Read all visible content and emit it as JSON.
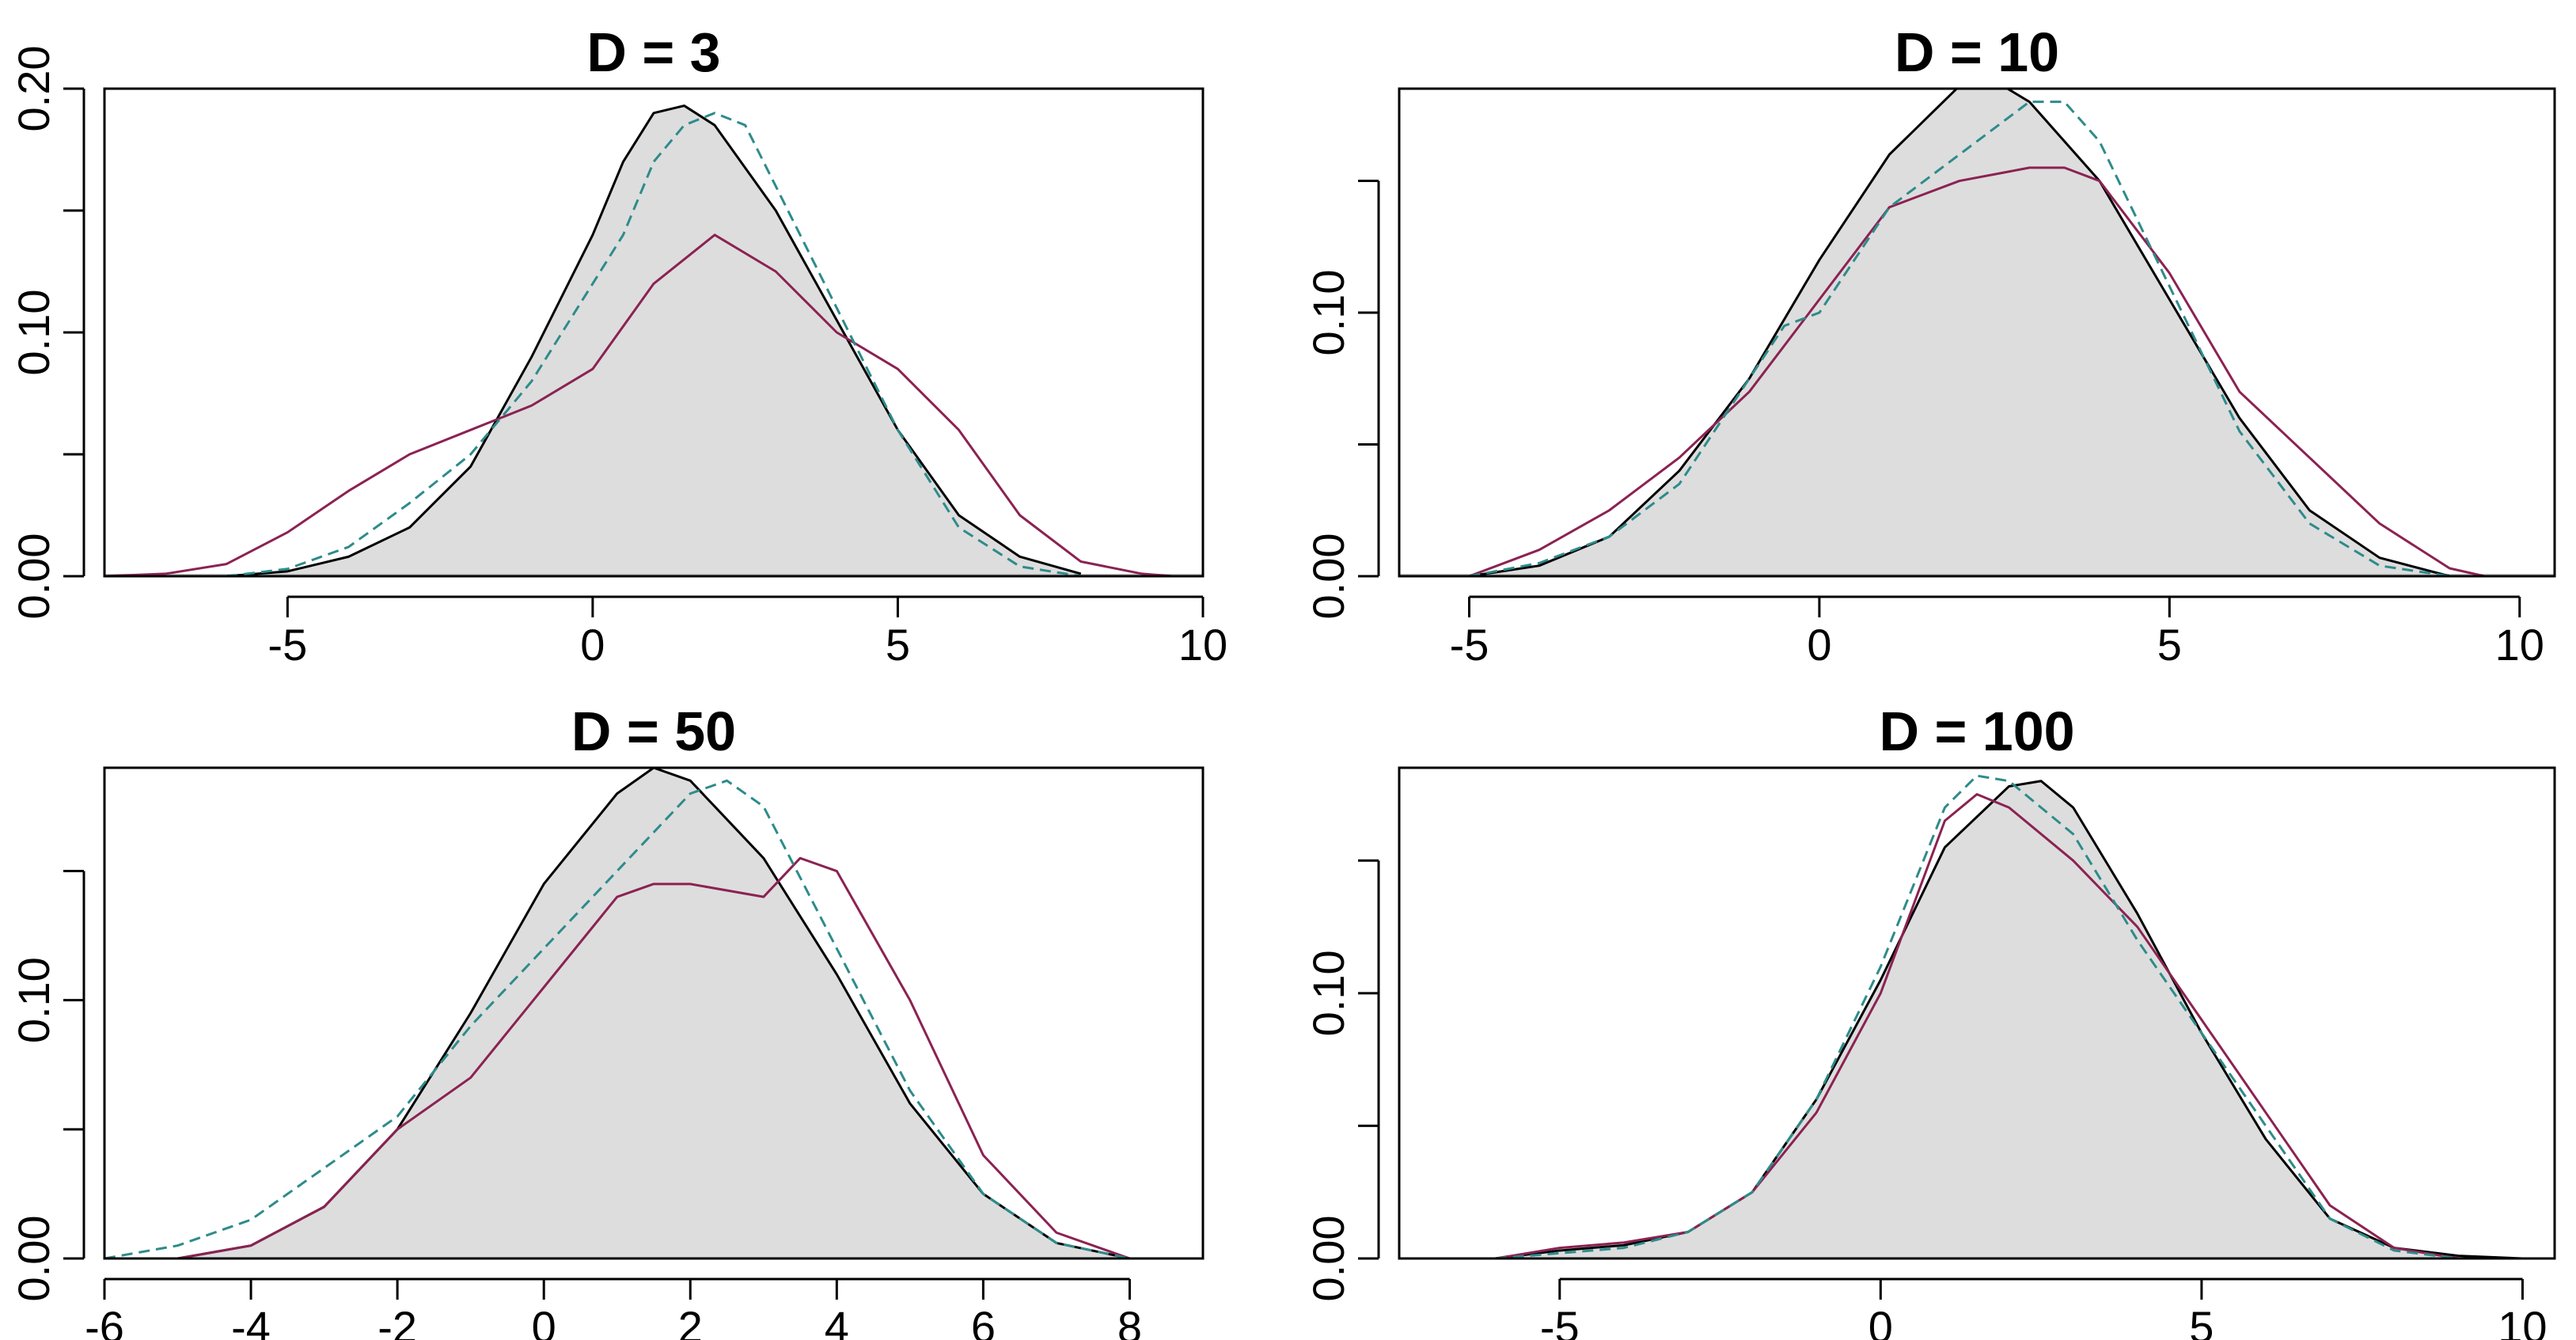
{
  "chart_data": [
    {
      "type": "line",
      "title": "D = 3",
      "xlim": [
        -8,
        10
      ],
      "ylim": [
        0,
        0.2
      ],
      "xticks": [
        -5,
        0,
        5,
        10
      ],
      "yticks": [
        0.0,
        0.05,
        0.1,
        0.15,
        0.2
      ],
      "ytick_labels": [
        "0.00",
        "",
        "0.10",
        "",
        "0.20"
      ],
      "baseline": 0,
      "series": [
        {
          "style": "filled-solid",
          "color": "#000000",
          "fill": "#dddddd",
          "x": [
            -6.0,
            -5.0,
            -4.0,
            -3.0,
            -2.0,
            -1.0,
            0.0,
            0.5,
            1.0,
            1.5,
            2.0,
            3.0,
            4.0,
            5.0,
            6.0,
            7.0,
            8.0
          ],
          "y": [
            0.0,
            0.002,
            0.008,
            0.02,
            0.045,
            0.09,
            0.14,
            0.17,
            0.19,
            0.193,
            0.185,
            0.15,
            0.105,
            0.06,
            0.025,
            0.008,
            0.001
          ]
        },
        {
          "style": "solid",
          "color": "#8b2252",
          "x": [
            -8.0,
            -7.0,
            -6.0,
            -5.0,
            -4.0,
            -3.0,
            -2.0,
            -1.0,
            0.0,
            1.0,
            2.0,
            3.0,
            4.0,
            5.0,
            6.0,
            7.0,
            8.0,
            9.0,
            9.5
          ],
          "y": [
            0.0,
            0.001,
            0.005,
            0.018,
            0.035,
            0.05,
            0.06,
            0.07,
            0.085,
            0.12,
            0.14,
            0.125,
            0.1,
            0.085,
            0.06,
            0.025,
            0.006,
            0.001,
            0.0
          ]
        },
        {
          "style": "dashed",
          "color": "#2e8b8b",
          "x": [
            -6.0,
            -5.0,
            -4.0,
            -3.0,
            -2.0,
            -1.0,
            0.0,
            0.5,
            1.0,
            1.5,
            2.0,
            2.5,
            3.0,
            4.0,
            5.0,
            6.0,
            7.0,
            8.0
          ],
          "y": [
            0.0,
            0.003,
            0.012,
            0.03,
            0.05,
            0.08,
            0.12,
            0.14,
            0.17,
            0.185,
            0.19,
            0.185,
            0.16,
            0.11,
            0.06,
            0.02,
            0.004,
            0.0
          ]
        }
      ]
    },
    {
      "type": "line",
      "title": "D = 10",
      "xlim": [
        -6,
        10.5
      ],
      "ylim": [
        0,
        0.185
      ],
      "xticks": [
        -5,
        0,
        5,
        10
      ],
      "yticks": [
        0.0,
        0.05,
        0.1,
        0.15
      ],
      "ytick_labels": [
        "0.00",
        "",
        "0.10",
        ""
      ],
      "baseline": 0,
      "series": [
        {
          "style": "filled-solid",
          "color": "#000000",
          "fill": "#dddddd",
          "x": [
            -5.0,
            -4.0,
            -3.0,
            -2.0,
            -1.0,
            0.0,
            1.0,
            2.0,
            2.5,
            3.0,
            4.0,
            5.0,
            6.0,
            7.0,
            8.0,
            9.0
          ],
          "y": [
            0.0,
            0.004,
            0.015,
            0.04,
            0.075,
            0.12,
            0.16,
            0.186,
            0.188,
            0.18,
            0.15,
            0.105,
            0.06,
            0.025,
            0.007,
            0.0
          ]
        },
        {
          "style": "solid",
          "color": "#8b2252",
          "x": [
            -5.0,
            -4.0,
            -3.0,
            -2.0,
            -1.0,
            0.0,
            1.0,
            2.0,
            3.0,
            3.5,
            4.0,
            5.0,
            6.0,
            7.0,
            8.0,
            9.0,
            9.5
          ],
          "y": [
            0.0,
            0.01,
            0.025,
            0.045,
            0.07,
            0.105,
            0.14,
            0.15,
            0.155,
            0.155,
            0.15,
            0.115,
            0.07,
            0.045,
            0.02,
            0.003,
            0.0
          ]
        },
        {
          "style": "dashed",
          "color": "#2e8b8b",
          "x": [
            -5.0,
            -4.0,
            -3.0,
            -2.0,
            -1.0,
            -0.5,
            0.0,
            1.0,
            2.0,
            3.0,
            3.5,
            4.0,
            5.0,
            6.0,
            7.0,
            8.0,
            9.0
          ],
          "y": [
            0.0,
            0.005,
            0.015,
            0.035,
            0.075,
            0.095,
            0.1,
            0.14,
            0.16,
            0.18,
            0.18,
            0.165,
            0.11,
            0.055,
            0.02,
            0.004,
            0.0
          ]
        }
      ]
    },
    {
      "type": "line",
      "title": "D = 50",
      "xlim": [
        -6,
        9
      ],
      "ylim": [
        0,
        0.19
      ],
      "xticks": [
        -6,
        -4,
        -2,
        0,
        2,
        4,
        6,
        8
      ],
      "yticks": [
        0.0,
        0.05,
        0.1,
        0.15
      ],
      "ytick_labels": [
        "0.00",
        "",
        "0.10",
        ""
      ],
      "baseline": 0,
      "series": [
        {
          "style": "filled-solid",
          "color": "#000000",
          "fill": "#dddddd",
          "x": [
            -5.0,
            -4.0,
            -3.0,
            -2.0,
            -1.0,
            0.0,
            1.0,
            1.5,
            2.0,
            3.0,
            4.0,
            5.0,
            6.0,
            7.0,
            8.0
          ],
          "y": [
            0.0,
            0.005,
            0.02,
            0.05,
            0.095,
            0.145,
            0.18,
            0.19,
            0.185,
            0.155,
            0.11,
            0.06,
            0.025,
            0.006,
            0.0
          ]
        },
        {
          "style": "solid",
          "color": "#8b2252",
          "x": [
            -5.0,
            -4.0,
            -3.0,
            -2.0,
            -1.0,
            0.0,
            1.0,
            1.5,
            2.0,
            3.0,
            3.5,
            4.0,
            5.0,
            6.0,
            7.0,
            8.0
          ],
          "y": [
            0.0,
            0.005,
            0.02,
            0.05,
            0.07,
            0.105,
            0.14,
            0.145,
            0.145,
            0.14,
            0.155,
            0.15,
            0.1,
            0.04,
            0.01,
            0.0
          ]
        },
        {
          "style": "dashed",
          "color": "#2e8b8b",
          "x": [
            -6.0,
            -5.0,
            -4.0,
            -3.0,
            -2.0,
            -1.0,
            0.0,
            1.0,
            2.0,
            2.5,
            3.0,
            4.0,
            5.0,
            6.0,
            7.0,
            8.0
          ],
          "y": [
            0.0,
            0.005,
            0.015,
            0.035,
            0.055,
            0.09,
            0.12,
            0.15,
            0.18,
            0.185,
            0.175,
            0.12,
            0.065,
            0.025,
            0.006,
            0.0
          ]
        }
      ]
    },
    {
      "type": "line",
      "title": "D = 100",
      "xlim": [
        -7.5,
        10.5
      ],
      "ylim": [
        0,
        0.185
      ],
      "xticks": [
        -5,
        0,
        5,
        10
      ],
      "yticks": [
        0.0,
        0.05,
        0.1,
        0.15
      ],
      "ytick_labels": [
        "0.00",
        "",
        "0.10",
        ""
      ],
      "baseline": 0,
      "series": [
        {
          "style": "filled-solid",
          "color": "#000000",
          "fill": "#dddddd",
          "x": [
            -6.0,
            -5.0,
            -4.0,
            -3.0,
            -2.0,
            -1.0,
            0.0,
            1.0,
            2.0,
            2.5,
            3.0,
            4.0,
            5.0,
            6.0,
            7.0,
            8.0,
            9.0,
            10.0
          ],
          "y": [
            0.0,
            0.003,
            0.005,
            0.01,
            0.025,
            0.06,
            0.105,
            0.155,
            0.178,
            0.18,
            0.17,
            0.13,
            0.085,
            0.045,
            0.015,
            0.004,
            0.001,
            0.0
          ]
        },
        {
          "style": "solid",
          "color": "#8b2252",
          "x": [
            -6.0,
            -5.0,
            -4.0,
            -3.0,
            -2.0,
            -1.0,
            0.0,
            1.0,
            1.5,
            2.0,
            3.0,
            4.0,
            5.0,
            6.0,
            7.0,
            8.0,
            9.0
          ],
          "y": [
            0.0,
            0.004,
            0.006,
            0.01,
            0.025,
            0.055,
            0.1,
            0.165,
            0.175,
            0.17,
            0.15,
            0.125,
            0.09,
            0.055,
            0.02,
            0.004,
            0.0
          ]
        },
        {
          "style": "dashed",
          "color": "#2e8b8b",
          "x": [
            -6.0,
            -5.0,
            -4.0,
            -3.0,
            -2.0,
            -1.0,
            0.0,
            1.0,
            1.5,
            2.0,
            3.0,
            4.0,
            5.0,
            6.0,
            7.0,
            8.0,
            9.0
          ],
          "y": [
            0.0,
            0.002,
            0.004,
            0.01,
            0.025,
            0.06,
            0.11,
            0.17,
            0.182,
            0.18,
            0.16,
            0.12,
            0.085,
            0.05,
            0.015,
            0.003,
            0.0
          ]
        }
      ]
    }
  ]
}
